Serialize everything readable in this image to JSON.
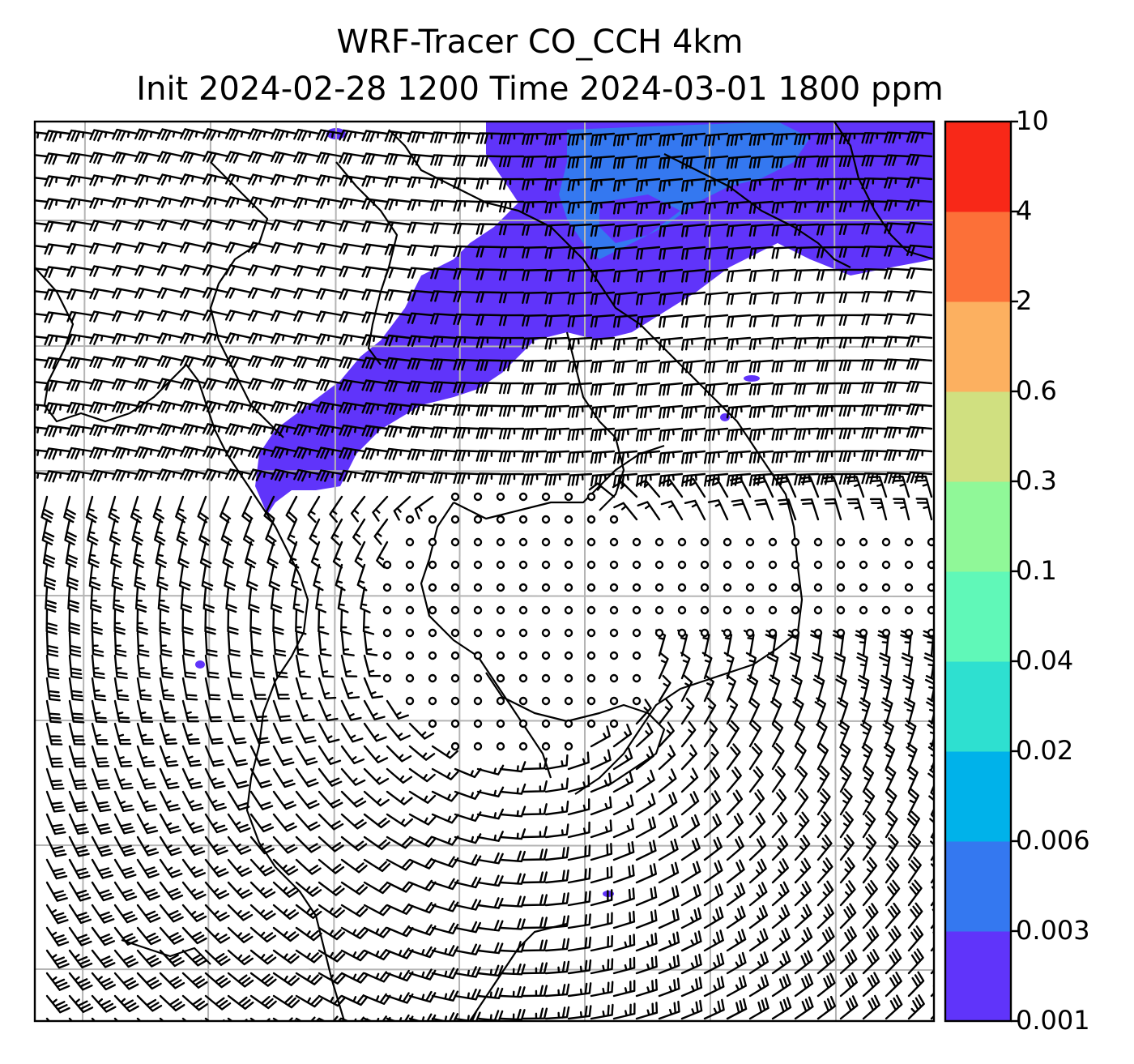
{
  "title": {
    "line1": "WRF-Tracer CO_CCH 4km",
    "line2": "Init 2024-02-28 1200 Time 2024-03-01 1800 ppm"
  },
  "colorbar": {
    "levels": [
      "0.001",
      "0.003",
      "0.006",
      "0.02",
      "0.04",
      "0.1",
      "0.3",
      "0.6",
      "2",
      "4",
      "10"
    ],
    "colors": [
      "#6034fa",
      "#3478f0",
      "#00b2ea",
      "#2ee0d0",
      "#60f8b8",
      "#90f898",
      "#d0e080",
      "#fcb060",
      "#fc7038",
      "#f82818"
    ]
  },
  "map": {
    "grid": "on",
    "tracer_color": "#6034fa",
    "tracer_color_high": "#3478f0",
    "barb_color": "#000000"
  }
}
